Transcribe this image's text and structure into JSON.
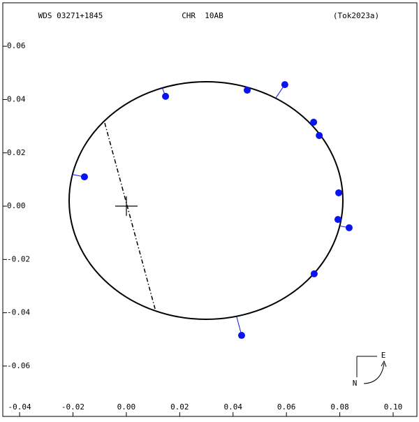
{
  "chart_data": {
    "type": "scatter",
    "title": "WDS 03271+1845",
    "subtitle": "CHR  10AB",
    "reference": "(Tok2023a)",
    "compass": {
      "east": "E",
      "north": "N"
    },
    "x": [
      0.0147,
      0.0453,
      0.0594,
      0.0702,
      0.0723,
      0.0796,
      0.0793,
      0.0835,
      0.0704,
      0.0432,
      -0.0157
    ],
    "y": [
      0.0412,
      0.0435,
      0.0456,
      0.0315,
      0.0265,
      0.005,
      -0.005,
      -0.0081,
      -0.0254,
      -0.0485,
      0.011
    ],
    "color": "#0a14f0",
    "xlim": [
      -0.0463,
      0.1089
    ],
    "ylim": [
      -0.0789,
      0.0763
    ],
    "xticks": [
      {
        "value": -0.04,
        "label": "-0.04"
      },
      {
        "value": -0.02,
        "label": "-0.02"
      },
      {
        "value": 0,
        "label": "0.00"
      },
      {
        "value": 0.02,
        "label": "0.02"
      },
      {
        "value": 0.04,
        "label": "0.04"
      },
      {
        "value": 0.06,
        "label": "0.06"
      },
      {
        "value": 0.08,
        "label": "0.08"
      },
      {
        "value": 0.1,
        "label": "0.10"
      }
    ],
    "yticks": [
      {
        "value": 0.06,
        "label": "0.06"
      },
      {
        "value": 0.04,
        "label": "0.04"
      },
      {
        "value": 0.02,
        "label": "0.02"
      },
      {
        "value": 0,
        "label": "0.00"
      },
      {
        "value": -0.02,
        "label": "-0.02"
      },
      {
        "value": -0.04,
        "label": "-0.04"
      },
      {
        "value": -0.06,
        "label": "-0.06"
      }
    ]
  }
}
